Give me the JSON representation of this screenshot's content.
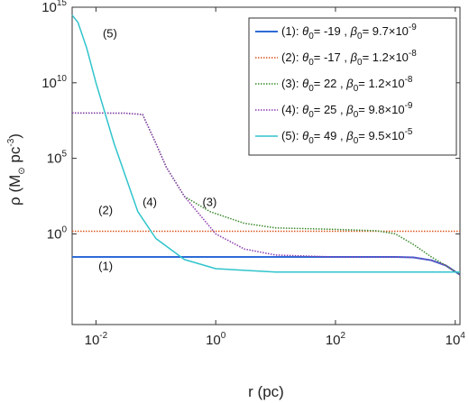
{
  "chart_data": {
    "type": "line",
    "xscale": "log",
    "yscale": "log",
    "xlim": [
      0.004,
      12000
    ],
    "ylim": [
      1e-06,
      1000000000000000.0
    ],
    "xlabel": "r (pc)",
    "ylabel": {
      "base": "ρ (M",
      "sub1": "⊙",
      "mid": "pc",
      "sup": "-3",
      "end": ")"
    },
    "xticks": [
      {
        "value": 0.01,
        "base": "10",
        "exp": "-2"
      },
      {
        "value": 1,
        "base": "10",
        "exp": "0"
      },
      {
        "value": 100,
        "base": "10",
        "exp": "2"
      },
      {
        "value": 10000,
        "base": "10",
        "exp": "4"
      }
    ],
    "yticks": [
      {
        "value": 1,
        "base": "10",
        "exp": "0"
      },
      {
        "value": 100000,
        "base": "10",
        "exp": "5"
      },
      {
        "value": 10000000000.0,
        "base": "10",
        "exp": "10"
      },
      {
        "value": 1000000000000000.0,
        "base": "10",
        "exp": "15"
      }
    ],
    "legend_position": "top-right",
    "series": [
      {
        "name": "(1)",
        "theta": "-19",
        "beta_mant": "9.7×10",
        "beta_exp": "-9",
        "color": "#2e6bd6",
        "dash": "solid",
        "width": 2,
        "points": [
          [
            0.004,
            0.03
          ],
          [
            1000,
            0.03
          ],
          [
            2000,
            0.028
          ],
          [
            4000,
            0.018
          ],
          [
            7000,
            0.008
          ],
          [
            12000,
            0.002
          ]
        ]
      },
      {
        "name": "(2)",
        "theta": "-17",
        "beta_mant": "1.2×10",
        "beta_exp": "-8",
        "color": "#d9541e",
        "dash": "dot",
        "width": 1.5,
        "points": [
          [
            0.004,
            1.5
          ],
          [
            12000,
            1.5
          ]
        ]
      },
      {
        "name": "(3)",
        "theta": "22",
        "beta_mant": "1.2×10",
        "beta_exp": "-8",
        "color": "#3a8a2c",
        "dash": "dot",
        "width": 1.5,
        "points": [
          [
            0.004,
            100000000.0
          ],
          [
            0.03,
            98000000.0
          ],
          [
            0.06,
            80000000.0
          ],
          [
            0.1,
            1000000.0
          ],
          [
            0.15,
            25000
          ],
          [
            0.3,
            300
          ],
          [
            0.8,
            30
          ],
          [
            3,
            5
          ],
          [
            10,
            2.5
          ],
          [
            100,
            2
          ],
          [
            500,
            1.6
          ],
          [
            1000,
            1
          ],
          [
            2000,
            0.2
          ],
          [
            4000,
            0.03
          ],
          [
            7000,
            0.008
          ],
          [
            12000,
            0.002
          ]
        ]
      },
      {
        "name": "(4)",
        "theta": "25",
        "beta_mant": "9.8×10",
        "beta_exp": "-9",
        "color": "#8a3ab0",
        "dash": "dot",
        "width": 1.5,
        "points": [
          [
            0.004,
            100000000.0
          ],
          [
            0.03,
            98000000.0
          ],
          [
            0.06,
            80000000.0
          ],
          [
            0.1,
            1000000.0
          ],
          [
            0.15,
            25000
          ],
          [
            0.3,
            300
          ],
          [
            1,
            1
          ],
          [
            3,
            0.1
          ],
          [
            10,
            0.04
          ],
          [
            100,
            0.03
          ],
          [
            1000,
            0.03
          ],
          [
            2000,
            0.028
          ],
          [
            4000,
            0.018
          ],
          [
            7000,
            0.008
          ],
          [
            12000,
            0.002
          ]
        ]
      },
      {
        "name": "(5)",
        "theta": "49",
        "beta_mant": "9.5×10",
        "beta_exp": "-5",
        "color": "#30c4cc",
        "dash": "solid",
        "width": 1.5,
        "points": [
          [
            0.004,
            300000000000000.0
          ],
          [
            0.005,
            100000000000000.0
          ],
          [
            0.007,
            2000000000000.0
          ],
          [
            0.01,
            10000000000.0
          ],
          [
            0.02,
            1000000.0
          ],
          [
            0.05,
            30
          ],
          [
            0.1,
            0.5
          ],
          [
            0.3,
            0.02
          ],
          [
            1,
            0.005
          ],
          [
            10,
            0.003
          ],
          [
            1000,
            0.003
          ],
          [
            12000,
            0.003
          ]
        ]
      }
    ],
    "legend_labels": {
      "theta": "θ",
      "beta": "β",
      "sub": "0"
    },
    "annotations": [
      {
        "text": "(5)",
        "x": 0.013,
        "y": 10000000000000.0
      },
      {
        "text": "(4)",
        "x": 0.06,
        "y": 70
      },
      {
        "text": "(3)",
        "x": 0.6,
        "y": 70
      },
      {
        "text": "(2)",
        "x": 0.011,
        "y": 20
      },
      {
        "text": "(1)",
        "x": 0.011,
        "y": 0.004
      }
    ]
  }
}
